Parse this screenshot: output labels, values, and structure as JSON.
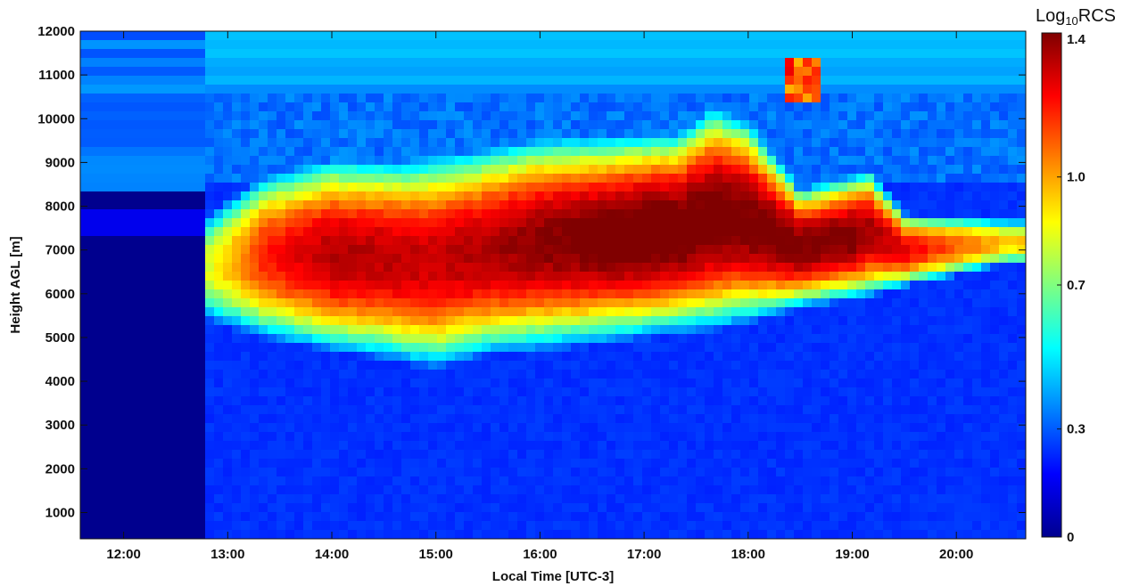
{
  "chart_data": {
    "type": "heatmap",
    "title": "",
    "xlabel": "Local Time [UTC-3]",
    "ylabel": "Height AGL [m]",
    "xlim": [
      "11:35",
      "20:40"
    ],
    "ylim": [
      400,
      12000
    ],
    "x_ticks": [
      "12:00",
      "13:00",
      "14:00",
      "15:00",
      "16:00",
      "17:00",
      "18:00",
      "19:00",
      "20:00"
    ],
    "y_ticks": [
      1000,
      2000,
      3000,
      4000,
      5000,
      6000,
      7000,
      8000,
      9000,
      10000,
      11000,
      12000
    ],
    "colorbar": {
      "label_main": "Log",
      "label_sub": "10",
      "label_end": "RCS",
      "ticks": [
        "0",
        "0.3",
        "0.7",
        "1.0",
        "1.4"
      ],
      "tick_values": [
        0,
        0.3,
        0.7,
        1.0,
        1.4
      ],
      "range": [
        0,
        1.4
      ],
      "colormap": "jet"
    },
    "features": [
      {
        "description": "no data / clean air before instrument start",
        "time_start": "11:35",
        "time_end": "12:48",
        "height_range": [
          400,
          7600
        ],
        "log_rcs": 0.0
      },
      {
        "description": "boundary layer background",
        "time_start": "12:48",
        "time_end": "20:40",
        "height_range": [
          400,
          5000
        ],
        "log_rcs": 0.22
      },
      {
        "description": "volcanic ash / aerosol layer",
        "time_start": "12:48",
        "time_end": "20:40",
        "center_height": [
          6300,
          7100,
          7400
        ],
        "thickness": [
          2600,
          1500,
          700
        ],
        "peak_log_rcs": 1.4
      },
      {
        "description": "upper cloud filaments",
        "time_start": "18:20",
        "time_end": "18:40",
        "height_range": [
          10300,
          11400
        ],
        "log_rcs": 1.1
      }
    ]
  }
}
